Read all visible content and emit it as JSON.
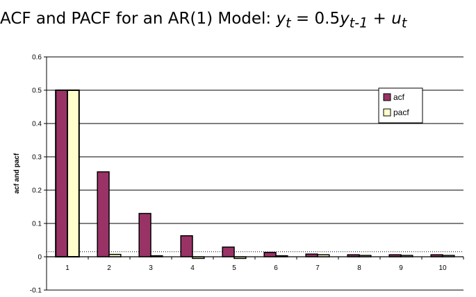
{
  "chart_data": {
    "type": "bar",
    "title_prefix": "ACF and PACF for an AR(1) Model: ",
    "title_formula": {
      "lhs": "y",
      "lhs_sub": "t",
      "eq": " = 0.5",
      "rhs": "y",
      "rhs_sub": "t-1",
      "plus": " + ",
      "err": "u",
      "err_sub": "t"
    },
    "ylabel": "acf and pacf",
    "xlabel": "",
    "categories": [
      "1",
      "2",
      "3",
      "4",
      "5",
      "6",
      "7",
      "8",
      "9",
      "10"
    ],
    "ylim": [
      -0.1,
      0.6
    ],
    "yticks": [
      "-0.1",
      "0",
      "0.1",
      "0.2",
      "0.3",
      "0.4",
      "0.5",
      "0.6"
    ],
    "grid": true,
    "legend_position": "top-right",
    "series": [
      {
        "name": "acf",
        "color": "#993366",
        "values": [
          0.5,
          0.255,
          0.13,
          0.063,
          0.029,
          0.013,
          0.008,
          0.006,
          0.006,
          0.006
        ]
      },
      {
        "name": "pacf",
        "color": "#FFFFCC",
        "values": [
          0.5,
          0.007,
          0.003,
          -0.005,
          -0.005,
          0.003,
          0.006,
          0.004,
          0.004,
          0.004
        ]
      }
    ],
    "reference_line": {
      "value": 0.015,
      "style": "dotted"
    }
  }
}
